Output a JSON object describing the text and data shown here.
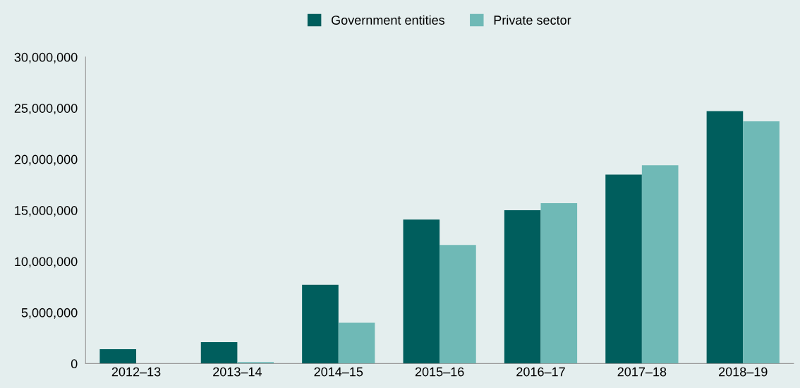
{
  "chart_data": {
    "type": "bar",
    "categories": [
      "2012–13",
      "2013–14",
      "2014–15",
      "2015–16",
      "2016–17",
      "2017–18",
      "2018–19"
    ],
    "series": [
      {
        "name": "Government entities",
        "color": "#005e5d",
        "values": [
          1400000,
          2100000,
          7700000,
          14100000,
          15000000,
          18500000,
          24700000
        ]
      },
      {
        "name": "Private sector",
        "color": "#6fb9b6",
        "values": [
          0,
          150000,
          4000000,
          11600000,
          15700000,
          19400000,
          23700000
        ]
      }
    ],
    "ylim": [
      0,
      30000000
    ],
    "yticks": [
      0,
      {
        "value": 5000000,
        "label": "5,000,000"
      },
      {
        "value": 10000000,
        "label": "10,000,000"
      },
      {
        "value": 15000000,
        "label": "15,000,000"
      },
      {
        "value": 20000000,
        "label": "20,000,000"
      },
      {
        "value": 25000000,
        "label": "25,000,000"
      },
      {
        "value": 30000000,
        "label": "30,000,000"
      }
    ],
    "legend": "top",
    "grid": false
  }
}
